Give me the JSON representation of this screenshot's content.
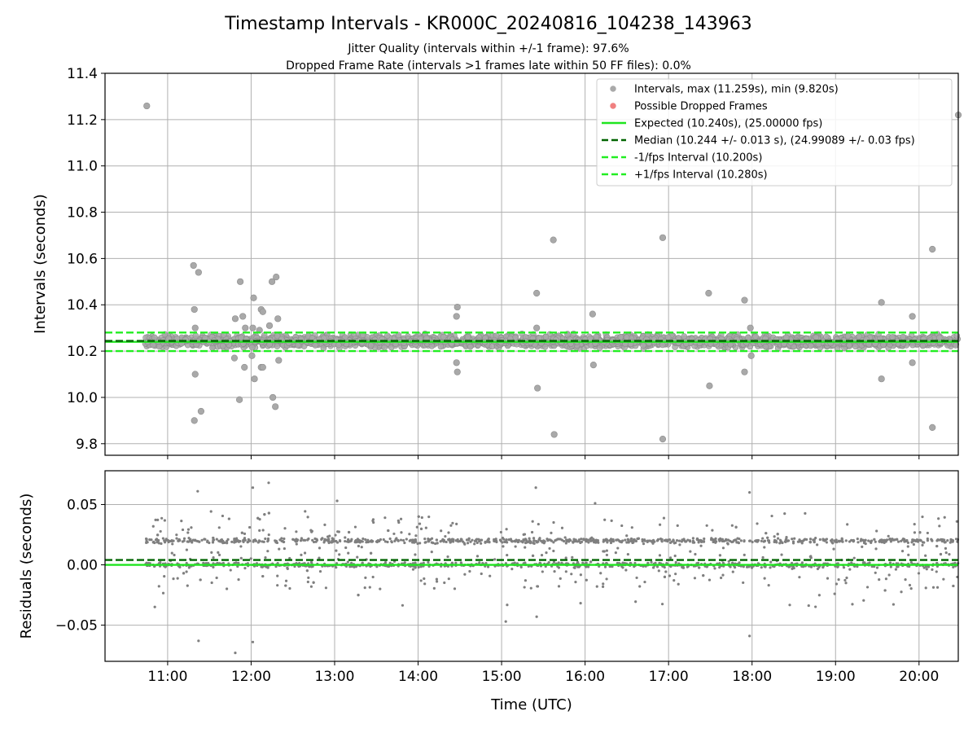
{
  "figure": {
    "title": "Timestamp Intervals - KR000C_20240816_104238_143963",
    "subtitle_line1": "Jitter Quality (intervals within +/-1 frame): 97.6%",
    "subtitle_line2": "Dropped Frame Rate (intervals >1 frames late within 50 FF files): 0.0%"
  },
  "colors": {
    "points": "#a9a9a9",
    "points_edge": "#8c8c8c",
    "residual_points": "#7f7f7f",
    "dropped": "#f08080",
    "expected": "#1fe51f",
    "median": "#006400",
    "interval_lines": "#22ee22",
    "grid": "#b0b0b0",
    "axis": "#000000"
  },
  "chart_data": [
    {
      "type": "scatter",
      "id": "intervals",
      "ylabel": "Intervals (seconds)",
      "xlabel": "",
      "x_unit": "hours UTC",
      "xlim": [
        10.25,
        20.47
      ],
      "ylim": [
        9.75,
        11.4
      ],
      "x_ticks": [
        11,
        12,
        13,
        14,
        15,
        16,
        17,
        18,
        19,
        20
      ],
      "x_tick_labels": [
        "11:00",
        "12:00",
        "13:00",
        "14:00",
        "15:00",
        "16:00",
        "17:00",
        "18:00",
        "19:00",
        "20:00"
      ],
      "show_x_tick_labels": false,
      "y_ticks": [
        9.8,
        10.0,
        10.2,
        10.4,
        10.6,
        10.8,
        11.0,
        11.2,
        11.4
      ],
      "y_tick_labels": [
        "9.8",
        "10.0",
        "10.2",
        "10.4",
        "10.6",
        "10.8",
        "11.0",
        "11.2",
        "11.4"
      ],
      "grid": true,
      "legend_position": "top-right",
      "legend": [
        {
          "label": "Intervals, max (11.259s), min (9.820s)",
          "kind": "point",
          "color": "#a9a9a9"
        },
        {
          "label": "Possible Dropped Frames",
          "kind": "point",
          "color": "#f08080"
        },
        {
          "label": "Expected (10.240s), (25.00000 fps)",
          "kind": "solid",
          "color": "#1fe51f"
        },
        {
          "label": "Median (10.244 +/- 0.013 s), (24.99089 +/- 0.03 fps)",
          "kind": "dashed",
          "color": "#006400"
        },
        {
          "label": "-1/fps Interval (10.200s)",
          "kind": "dashed",
          "color": "#22ee22"
        },
        {
          "label": "+1/fps Interval (10.280s)",
          "kind": "dashed",
          "color": "#22ee22"
        }
      ],
      "hlines": [
        {
          "name": "Expected",
          "y": 10.24,
          "style": "solid",
          "color": "#1fe51f"
        },
        {
          "name": "Median",
          "y": 10.244,
          "style": "dashed",
          "color": "#006400"
        },
        {
          "name": "-1/fps Interval",
          "y": 10.2,
          "style": "dashed",
          "color": "#22ee22"
        },
        {
          "name": "+1/fps Interval",
          "y": 10.28,
          "style": "dashed",
          "color": "#22ee22"
        }
      ],
      "dense_band": {
        "x_range": [
          10.73,
          20.47
        ],
        "y_range": [
          10.205,
          10.28
        ],
        "approx_count": 2000
      },
      "outliers": [
        {
          "x": 10.75,
          "y": 11.259
        },
        {
          "x": 11.31,
          "y": 10.57
        },
        {
          "x": 11.37,
          "y": 10.54
        },
        {
          "x": 11.32,
          "y": 10.38
        },
        {
          "x": 11.33,
          "y": 10.3
        },
        {
          "x": 11.33,
          "y": 10.1
        },
        {
          "x": 11.4,
          "y": 9.94
        },
        {
          "x": 11.32,
          "y": 9.9
        },
        {
          "x": 11.81,
          "y": 10.34
        },
        {
          "x": 11.87,
          "y": 10.5
        },
        {
          "x": 11.9,
          "y": 10.35
        },
        {
          "x": 11.93,
          "y": 10.3
        },
        {
          "x": 11.8,
          "y": 10.17
        },
        {
          "x": 11.92,
          "y": 10.13
        },
        {
          "x": 11.86,
          "y": 9.99
        },
        {
          "x": 12.03,
          "y": 10.43
        },
        {
          "x": 12.02,
          "y": 10.3
        },
        {
          "x": 12.12,
          "y": 10.38
        },
        {
          "x": 12.14,
          "y": 10.37
        },
        {
          "x": 12.1,
          "y": 10.29
        },
        {
          "x": 12.01,
          "y": 10.18
        },
        {
          "x": 12.12,
          "y": 10.13
        },
        {
          "x": 12.14,
          "y": 10.13
        },
        {
          "x": 12.04,
          "y": 10.08
        },
        {
          "x": 12.25,
          "y": 10.5
        },
        {
          "x": 12.3,
          "y": 10.52
        },
        {
          "x": 12.32,
          "y": 10.34
        },
        {
          "x": 12.22,
          "y": 10.31
        },
        {
          "x": 12.33,
          "y": 10.16
        },
        {
          "x": 12.26,
          "y": 10.0
        },
        {
          "x": 12.29,
          "y": 9.96
        },
        {
          "x": 14.47,
          "y": 10.39
        },
        {
          "x": 14.46,
          "y": 10.35
        },
        {
          "x": 14.46,
          "y": 10.15
        },
        {
          "x": 14.47,
          "y": 10.11
        },
        {
          "x": 15.42,
          "y": 10.45
        },
        {
          "x": 15.42,
          "y": 10.3
        },
        {
          "x": 15.43,
          "y": 10.04
        },
        {
          "x": 15.62,
          "y": 10.68
        },
        {
          "x": 15.63,
          "y": 9.84
        },
        {
          "x": 16.09,
          "y": 10.36
        },
        {
          "x": 16.1,
          "y": 10.14
        },
        {
          "x": 16.93,
          "y": 10.69
        },
        {
          "x": 16.93,
          "y": 9.82
        },
        {
          "x": 17.48,
          "y": 10.45
        },
        {
          "x": 17.49,
          "y": 10.05
        },
        {
          "x": 17.91,
          "y": 10.42
        },
        {
          "x": 17.98,
          "y": 10.3
        },
        {
          "x": 17.99,
          "y": 10.18
        },
        {
          "x": 17.91,
          "y": 10.11
        },
        {
          "x": 19.55,
          "y": 10.41
        },
        {
          "x": 19.55,
          "y": 10.08
        },
        {
          "x": 19.92,
          "y": 10.35
        },
        {
          "x": 19.92,
          "y": 10.15
        },
        {
          "x": 20.16,
          "y": 10.64
        },
        {
          "x": 20.16,
          "y": 9.87
        },
        {
          "x": 20.47,
          "y": 11.22
        }
      ]
    },
    {
      "type": "scatter",
      "id": "residuals",
      "ylabel": "Residuals (seconds)",
      "xlabel": "Time (UTC)",
      "x_unit": "hours UTC",
      "xlim": [
        10.25,
        20.47
      ],
      "ylim": [
        -0.08,
        0.078
      ],
      "x_ticks": [
        11,
        12,
        13,
        14,
        15,
        16,
        17,
        18,
        19,
        20
      ],
      "x_tick_labels": [
        "11:00",
        "12:00",
        "13:00",
        "14:00",
        "15:00",
        "16:00",
        "17:00",
        "18:00",
        "19:00",
        "20:00"
      ],
      "show_x_tick_labels": true,
      "y_ticks": [
        -0.05,
        0.0,
        0.05
      ],
      "y_tick_labels": [
        "−0.05",
        "0.00",
        "0.05"
      ],
      "grid": true,
      "hlines": [
        {
          "name": "Expected",
          "y": 0.0,
          "style": "solid",
          "color": "#1fe51f"
        },
        {
          "name": "Median",
          "y": 0.004,
          "style": "dashed",
          "color": "#006400"
        }
      ],
      "bands": [
        {
          "center": 0.02,
          "spread": 0.004
        },
        {
          "center": 0.0,
          "spread": 0.004
        }
      ],
      "approx_count": 2000,
      "outliers": [
        {
          "x": 11.36,
          "y": 0.061
        },
        {
          "x": 12.02,
          "y": 0.064
        },
        {
          "x": 12.21,
          "y": 0.068
        },
        {
          "x": 13.03,
          "y": 0.053
        },
        {
          "x": 15.41,
          "y": 0.064
        },
        {
          "x": 16.12,
          "y": 0.051
        },
        {
          "x": 17.97,
          "y": 0.06
        },
        {
          "x": 11.37,
          "y": -0.063
        },
        {
          "x": 11.81,
          "y": -0.073
        },
        {
          "x": 12.02,
          "y": -0.064
        },
        {
          "x": 17.97,
          "y": -0.059
        },
        {
          "x": 15.05,
          "y": -0.047
        },
        {
          "x": 15.42,
          "y": -0.043
        }
      ]
    }
  ]
}
